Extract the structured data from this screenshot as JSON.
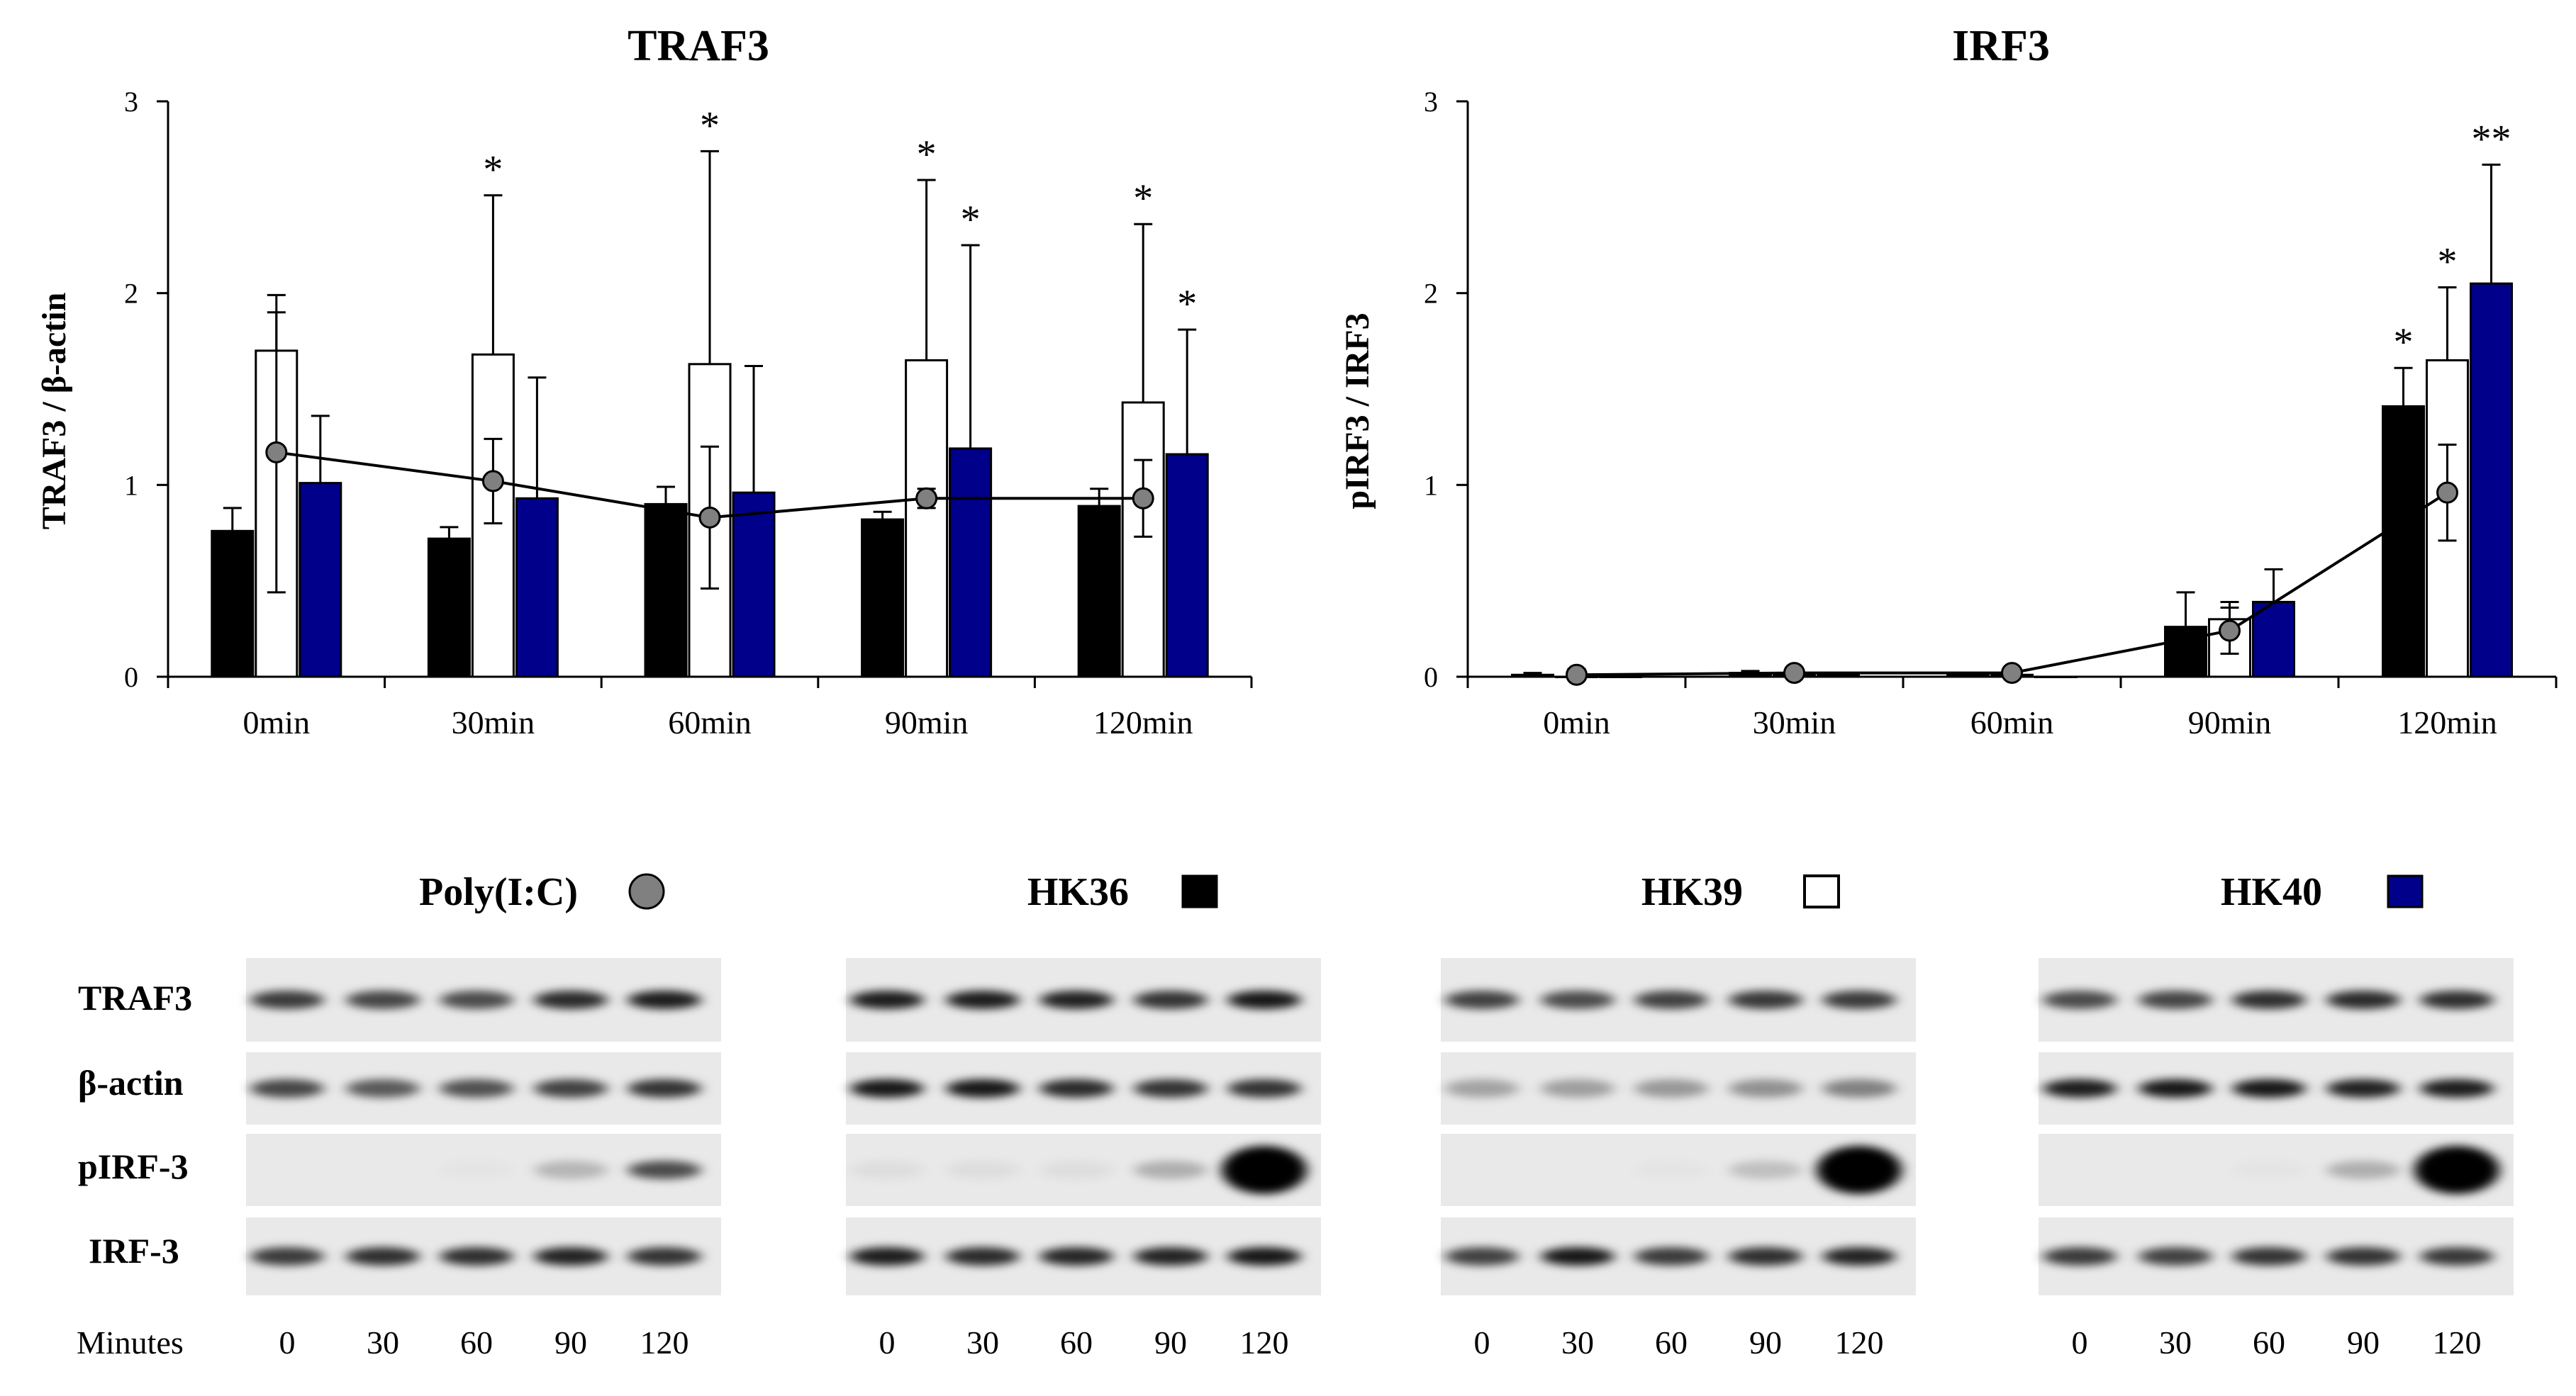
{
  "chart_data": [
    {
      "type": "bar",
      "title": "TRAF3",
      "ylabel": "TRAF3 / β-actin",
      "xlabel": "",
      "ylim": [
        0,
        3
      ],
      "yticks": [
        "0",
        "1",
        "2",
        "3"
      ],
      "categories": [
        "0min",
        "30min",
        "60min",
        "90min",
        "120min"
      ],
      "series": [
        {
          "name": "HK36",
          "color": "#000000",
          "values": [
            0.76,
            0.72,
            0.9,
            0.82,
            0.89
          ],
          "errors": [
            0.12,
            0.06,
            0.09,
            0.04,
            0.09
          ]
        },
        {
          "name": "HK39",
          "color": "#ffffff",
          "values": [
            1.7,
            1.68,
            1.63,
            1.65,
            1.43
          ],
          "errors": [
            0.29,
            0.83,
            1.11,
            0.94,
            0.93
          ]
        },
        {
          "name": "HK40",
          "color": "#00008b",
          "values": [
            1.01,
            0.93,
            0.96,
            1.19,
            1.16
          ],
          "errors": [
            0.35,
            0.63,
            0.66,
            1.06,
            0.65
          ]
        }
      ],
      "line": {
        "name": "Poly(I:C)",
        "color": "#808080",
        "values": [
          1.17,
          1.02,
          0.83,
          0.93,
          0.93
        ],
        "errors": [
          0.73,
          0.22,
          0.37,
          0.05,
          0.2
        ]
      },
      "annotations": [
        {
          "category": 1,
          "series": 1,
          "text": "*"
        },
        {
          "category": 2,
          "series": 1,
          "text": "*"
        },
        {
          "category": 3,
          "series": 1,
          "text": "*"
        },
        {
          "category": 3,
          "series": 2,
          "text": "*"
        },
        {
          "category": 4,
          "series": 1,
          "text": "*"
        },
        {
          "category": 4,
          "series": 2,
          "text": "*"
        }
      ]
    },
    {
      "type": "bar",
      "title": "IRF3",
      "ylabel": "pIRF3 / IRF3",
      "xlabel": "",
      "ylim": [
        0,
        3
      ],
      "yticks": [
        "0",
        "1",
        "2",
        "3"
      ],
      "categories": [
        "0min",
        "30min",
        "60min",
        "90min",
        "120min"
      ],
      "series": [
        {
          "name": "HK36",
          "color": "#000000",
          "values": [
            0.01,
            0.02,
            0.01,
            0.26,
            1.41
          ],
          "errors": [
            0.01,
            0.01,
            0.01,
            0.18,
            0.2
          ]
        },
        {
          "name": "HK39",
          "color": "#ffffff",
          "values": [
            0.0,
            0.01,
            0.01,
            0.3,
            1.65
          ],
          "errors": [
            0.01,
            0.01,
            0.01,
            0.09,
            0.38
          ]
        },
        {
          "name": "HK40",
          "color": "#00008b",
          "values": [
            0.0,
            0.01,
            0.0,
            0.39,
            2.05
          ],
          "errors": [
            0.0,
            0.01,
            0.0,
            0.17,
            0.62
          ]
        }
      ],
      "line": {
        "name": "Poly(I:C)",
        "color": "#808080",
        "values": [
          0.01,
          0.02,
          0.02,
          0.24,
          0.96
        ],
        "errors": [
          0.03,
          0.01,
          0.01,
          0.12,
          0.25
        ]
      },
      "annotations": [
        {
          "category": 4,
          "series": 0,
          "text": "*"
        },
        {
          "category": 4,
          "series": 1,
          "text": "*"
        },
        {
          "category": 4,
          "series": 2,
          "text": "**"
        }
      ]
    }
  ],
  "legend": [
    {
      "label": "Poly(I:C)",
      "marker": "circle",
      "color": "#808080"
    },
    {
      "label": "HK36",
      "marker": "square",
      "color": "#000000"
    },
    {
      "label": "HK39",
      "marker": "square",
      "color": "#ffffff"
    },
    {
      "label": "HK40",
      "marker": "square",
      "color": "#00008b"
    }
  ],
  "blots": {
    "row_labels": [
      "TRAF3",
      "β-actin",
      "pIRF-3",
      "IRF-3"
    ],
    "minutes_label": "Minutes",
    "minutes": [
      "0",
      "30",
      "60",
      "90",
      "120"
    ],
    "panels": [
      {
        "name": "Poly(I:C)",
        "rows": [
          [
            0.75,
            0.7,
            0.68,
            0.82,
            0.88
          ],
          [
            0.7,
            0.62,
            0.66,
            0.72,
            0.78
          ],
          [
            0.0,
            0.0,
            0.02,
            0.22,
            0.68
          ],
          [
            0.75,
            0.8,
            0.8,
            0.85,
            0.78
          ]
        ]
      },
      {
        "name": "HK36",
        "rows": [
          [
            0.88,
            0.88,
            0.86,
            0.78,
            0.9
          ],
          [
            0.9,
            0.9,
            0.82,
            0.78,
            0.78
          ],
          [
            0.05,
            0.05,
            0.05,
            0.25,
            1.0
          ],
          [
            0.88,
            0.82,
            0.84,
            0.85,
            0.9
          ]
        ]
      },
      {
        "name": "HK39",
        "rows": [
          [
            0.72,
            0.68,
            0.72,
            0.76,
            0.75
          ],
          [
            0.3,
            0.32,
            0.35,
            0.38,
            0.45
          ],
          [
            0.0,
            0.0,
            0.02,
            0.18,
            1.0
          ],
          [
            0.72,
            0.9,
            0.75,
            0.8,
            0.85
          ]
        ]
      },
      {
        "name": "HK40",
        "rows": [
          [
            0.68,
            0.7,
            0.8,
            0.82,
            0.8
          ],
          [
            0.88,
            0.9,
            0.9,
            0.86,
            0.88
          ],
          [
            0.0,
            0.0,
            0.02,
            0.25,
            1.0
          ],
          [
            0.75,
            0.72,
            0.78,
            0.78,
            0.76
          ]
        ]
      }
    ]
  }
}
